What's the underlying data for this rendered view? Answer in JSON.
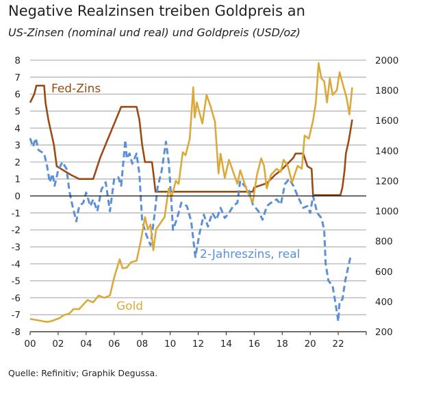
{
  "chart_data": {
    "type": "line",
    "title": "Negative Realzinsen treiben Goldpreis an",
    "subtitle": "US-Zinsen (nominal und real) und Goldpreis (USD/oz)",
    "source": "Quelle: Refinitiv; Graphik Degussa.",
    "x_ticks": [
      "00",
      "02",
      "04",
      "06",
      "08",
      "10",
      "12",
      "14",
      "16",
      "18",
      "20",
      "22"
    ],
    "xlim": [
      2000,
      2024
    ],
    "y_left": {
      "ylim": [
        -8,
        8
      ],
      "ticks": [
        8,
        7,
        6,
        5,
        4,
        3,
        2,
        1,
        0,
        -1,
        -2,
        -3,
        -4,
        -5,
        -6,
        -7,
        -8
      ]
    },
    "y_right": {
      "ylim": [
        200,
        2000
      ],
      "ticks": [
        2000,
        1800,
        1600,
        1400,
        1200,
        1000,
        800,
        600,
        400,
        200
      ]
    },
    "grid": true,
    "series": [
      {
        "name": "Fed-Zins",
        "axis": "left",
        "color": "#9a4a12",
        "style": "solid",
        "points": [
          [
            2000,
            5.5
          ],
          [
            2000.3,
            6.0
          ],
          [
            2000.45,
            6.5
          ],
          [
            2001.0,
            6.5
          ],
          [
            2001.1,
            5.5
          ],
          [
            2001.3,
            4.5
          ],
          [
            2001.5,
            3.75
          ],
          [
            2001.7,
            3.0
          ],
          [
            2001.9,
            1.75
          ],
          [
            2002.9,
            1.25
          ],
          [
            2003.5,
            1.0
          ],
          [
            2004.5,
            1.0
          ],
          [
            2004.7,
            1.5
          ],
          [
            2005.0,
            2.25
          ],
          [
            2005.5,
            3.25
          ],
          [
            2006.0,
            4.25
          ],
          [
            2006.5,
            5.25
          ],
          [
            2007.6,
            5.25
          ],
          [
            2007.8,
            4.5
          ],
          [
            2008.0,
            3.0
          ],
          [
            2008.2,
            2.0
          ],
          [
            2008.7,
            2.0
          ],
          [
            2008.85,
            1.0
          ],
          [
            2008.95,
            0.25
          ],
          [
            2015.9,
            0.25
          ],
          [
            2016.0,
            0.5
          ],
          [
            2016.9,
            0.75
          ],
          [
            2017.2,
            1.0
          ],
          [
            2017.5,
            1.25
          ],
          [
            2017.9,
            1.5
          ],
          [
            2018.2,
            1.75
          ],
          [
            2018.5,
            2.0
          ],
          [
            2018.8,
            2.25
          ],
          [
            2018.95,
            2.5
          ],
          [
            2019.5,
            2.5
          ],
          [
            2019.6,
            2.25
          ],
          [
            2019.8,
            1.75
          ],
          [
            2020.1,
            1.6
          ],
          [
            2020.2,
            0.05
          ],
          [
            2022.15,
            0.05
          ],
          [
            2022.3,
            0.5
          ],
          [
            2022.45,
            1.5
          ],
          [
            2022.55,
            2.5
          ],
          [
            2022.75,
            3.25
          ],
          [
            2022.9,
            4.0
          ],
          [
            2023.0,
            4.5
          ]
        ]
      },
      {
        "name": "2-Jahreszins, real",
        "axis": "left",
        "color": "#5b8fd6",
        "style": "dashed",
        "points": [
          [
            2000,
            3.4
          ],
          [
            2000.2,
            2.9
          ],
          [
            2000.4,
            3.4
          ],
          [
            2000.6,
            2.7
          ],
          [
            2001.0,
            2.5
          ],
          [
            2001.2,
            1.8
          ],
          [
            2001.4,
            0.8
          ],
          [
            2001.6,
            1.3
          ],
          [
            2001.75,
            0.6
          ],
          [
            2002.0,
            1.5
          ],
          [
            2002.3,
            2.0
          ],
          [
            2002.6,
            1.6
          ],
          [
            2002.8,
            0.3
          ],
          [
            2003.0,
            -0.5
          ],
          [
            2003.3,
            -1.5
          ],
          [
            2003.5,
            -0.6
          ],
          [
            2003.8,
            -0.4
          ],
          [
            2004.0,
            0.2
          ],
          [
            2004.3,
            -0.6
          ],
          [
            2004.5,
            -0.2
          ],
          [
            2004.8,
            -0.9
          ],
          [
            2005.1,
            0.4
          ],
          [
            2005.4,
            0.8
          ],
          [
            2005.7,
            -0.9
          ],
          [
            2006.0,
            1.0
          ],
          [
            2006.3,
            1.1
          ],
          [
            2006.5,
            0.6
          ],
          [
            2006.8,
            3.3
          ],
          [
            2006.9,
            2.2
          ],
          [
            2007.1,
            2.5
          ],
          [
            2007.3,
            1.9
          ],
          [
            2007.6,
            2.5
          ],
          [
            2007.8,
            1.3
          ],
          [
            2008.0,
            -1.5
          ],
          [
            2008.3,
            -2.3
          ],
          [
            2008.6,
            -2.9
          ],
          [
            2008.9,
            -1.0
          ],
          [
            2009.1,
            0.5
          ],
          [
            2009.4,
            1.5
          ],
          [
            2009.7,
            3.2
          ],
          [
            2009.9,
            2.0
          ],
          [
            2010.1,
            -0.5
          ],
          [
            2010.2,
            -2.0
          ],
          [
            2010.5,
            -1.3
          ],
          [
            2010.8,
            -0.4
          ],
          [
            2011.2,
            -0.6
          ],
          [
            2011.5,
            -1.5
          ],
          [
            2011.8,
            -3.6
          ],
          [
            2012.1,
            -2.2
          ],
          [
            2012.4,
            -1.1
          ],
          [
            2012.7,
            -1.8
          ],
          [
            2013.0,
            -1.0
          ],
          [
            2013.3,
            -1.4
          ],
          [
            2013.6,
            -0.7
          ],
          [
            2013.9,
            -1.3
          ],
          [
            2014.2,
            -1.0
          ],
          [
            2014.5,
            -0.6
          ],
          [
            2014.8,
            -0.4
          ],
          [
            2015.0,
            0.9
          ],
          [
            2015.3,
            0.6
          ],
          [
            2015.6,
            0.4
          ],
          [
            2015.9,
            -0.5
          ],
          [
            2016.3,
            -0.9
          ],
          [
            2016.6,
            -1.4
          ],
          [
            2016.9,
            -0.6
          ],
          [
            2017.2,
            -0.4
          ],
          [
            2017.6,
            -0.2
          ],
          [
            2017.9,
            -0.5
          ],
          [
            2018.2,
            0.7
          ],
          [
            2018.5,
            1.0
          ],
          [
            2018.8,
            0.6
          ],
          [
            2019.1,
            0.0
          ],
          [
            2019.5,
            -0.7
          ],
          [
            2019.8,
            -0.6
          ],
          [
            2020.0,
            -1.0
          ],
          [
            2020.2,
            0.0
          ],
          [
            2020.5,
            -1.0
          ],
          [
            2020.8,
            -1.3
          ],
          [
            2021.0,
            -2.0
          ],
          [
            2021.1,
            -4.0
          ],
          [
            2021.3,
            -5.0
          ],
          [
            2021.6,
            -5.3
          ],
          [
            2021.9,
            -6.8
          ],
          [
            2022.0,
            -7.4
          ],
          [
            2022.1,
            -6.2
          ],
          [
            2022.3,
            -6.1
          ],
          [
            2022.5,
            -5.0
          ],
          [
            2022.9,
            -3.5
          ]
        ]
      },
      {
        "name": "Gold",
        "axis": "right",
        "color": "#dba93a",
        "style": "solid",
        "points": [
          [
            2000,
            285
          ],
          [
            2000.3,
            280
          ],
          [
            2000.6,
            275
          ],
          [
            2000.9,
            270
          ],
          [
            2001.2,
            265
          ],
          [
            2001.5,
            270
          ],
          [
            2001.8,
            280
          ],
          [
            2002.1,
            290
          ],
          [
            2002.4,
            310
          ],
          [
            2002.8,
            320
          ],
          [
            2003.1,
            350
          ],
          [
            2003.5,
            350
          ],
          [
            2003.8,
            380
          ],
          [
            2004.1,
            410
          ],
          [
            2004.5,
            395
          ],
          [
            2004.9,
            440
          ],
          [
            2005.3,
            425
          ],
          [
            2005.7,
            440
          ],
          [
            2006.0,
            560
          ],
          [
            2006.4,
            680
          ],
          [
            2006.6,
            620
          ],
          [
            2006.9,
            625
          ],
          [
            2007.2,
            660
          ],
          [
            2007.6,
            670
          ],
          [
            2007.9,
            800
          ],
          [
            2008.2,
            960
          ],
          [
            2008.4,
            880
          ],
          [
            2008.6,
            910
          ],
          [
            2008.8,
            740
          ],
          [
            2009.0,
            880
          ],
          [
            2009.3,
            920
          ],
          [
            2009.6,
            960
          ],
          [
            2009.9,
            1150
          ],
          [
            2010.1,
            1090
          ],
          [
            2010.4,
            1200
          ],
          [
            2010.6,
            1180
          ],
          [
            2010.9,
            1390
          ],
          [
            2011.1,
            1370
          ],
          [
            2011.4,
            1480
          ],
          [
            2011.65,
            1820
          ],
          [
            2011.75,
            1620
          ],
          [
            2011.9,
            1720
          ],
          [
            2012.1,
            1650
          ],
          [
            2012.3,
            1580
          ],
          [
            2012.6,
            1770
          ],
          [
            2012.9,
            1690
          ],
          [
            2013.2,
            1590
          ],
          [
            2013.45,
            1250
          ],
          [
            2013.6,
            1380
          ],
          [
            2013.9,
            1220
          ],
          [
            2014.2,
            1340
          ],
          [
            2014.5,
            1260
          ],
          [
            2014.8,
            1180
          ],
          [
            2015.0,
            1270
          ],
          [
            2015.5,
            1130
          ],
          [
            2015.9,
            1060
          ],
          [
            2016.2,
            1240
          ],
          [
            2016.5,
            1350
          ],
          [
            2016.7,
            1300
          ],
          [
            2016.9,
            1150
          ],
          [
            2017.2,
            1240
          ],
          [
            2017.6,
            1280
          ],
          [
            2017.9,
            1260
          ],
          [
            2018.1,
            1340
          ],
          [
            2018.4,
            1300
          ],
          [
            2018.7,
            1190
          ],
          [
            2019.1,
            1300
          ],
          [
            2019.4,
            1280
          ],
          [
            2019.6,
            1500
          ],
          [
            2019.9,
            1480
          ],
          [
            2020.2,
            1600
          ],
          [
            2020.4,
            1720
          ],
          [
            2020.6,
            1980
          ],
          [
            2020.8,
            1880
          ],
          [
            2021.0,
            1860
          ],
          [
            2021.2,
            1720
          ],
          [
            2021.4,
            1880
          ],
          [
            2021.6,
            1770
          ],
          [
            2021.9,
            1800
          ],
          [
            2022.1,
            1920
          ],
          [
            2022.3,
            1850
          ],
          [
            2022.6,
            1750
          ],
          [
            2022.8,
            1640
          ],
          [
            2023.0,
            1820
          ]
        ]
      }
    ],
    "annotations": [
      {
        "text": "Fed-Zins",
        "color": "#9a4a12"
      },
      {
        "text": "2-Jahreszins, real",
        "color": "#5b8fd6"
      },
      {
        "text": "Gold",
        "color": "#dba93a"
      }
    ]
  }
}
